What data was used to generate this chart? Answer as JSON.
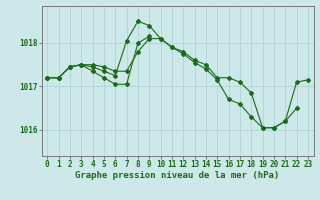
{
  "background_color": "#cce8e8",
  "grid_color": "#aad0d0",
  "line_color": "#1a6b1a",
  "xlabel": "Graphe pression niveau de la mer (hPa)",
  "xlabel_fontsize": 6.5,
  "tick_fontsize": 5.5,
  "yticks": [
    1016,
    1017,
    1018
  ],
  "ylim": [
    1015.4,
    1018.85
  ],
  "xlim": [
    -0.5,
    23.5
  ],
  "xticks": [
    0,
    1,
    2,
    3,
    4,
    5,
    6,
    7,
    8,
    9,
    10,
    11,
    12,
    13,
    14,
    15,
    16,
    17,
    18,
    19,
    20,
    21,
    22,
    23
  ],
  "series1": [
    1017.2,
    1017.2,
    1017.45,
    1017.5,
    1017.5,
    1017.45,
    1017.35,
    1017.35,
    1017.8,
    1018.1,
    1018.1,
    1017.9,
    1017.8,
    1017.6,
    1017.5,
    1017.2,
    1017.2,
    1017.1,
    1016.85,
    1016.05,
    1016.05,
    1016.2,
    1017.1,
    1017.15
  ],
  "series2": [
    1017.2,
    1017.2,
    1017.45,
    1017.5,
    1017.45,
    1017.35,
    1017.25,
    1018.05,
    1018.5,
    1018.4,
    1018.1,
    1017.9,
    1017.75,
    1017.55,
    1017.4,
    1017.15,
    1016.7,
    1016.6,
    1016.3,
    1016.05,
    1016.05,
    1016.2,
    1016.5,
    null
  ],
  "series3": [
    1017.2,
    1017.2,
    1017.45,
    1017.5,
    1017.35,
    1017.2,
    1017.05,
    1017.05,
    1018.0,
    1018.15,
    null,
    null,
    null,
    null,
    null,
    null,
    null,
    null,
    null,
    null,
    null,
    null,
    null,
    null
  ]
}
